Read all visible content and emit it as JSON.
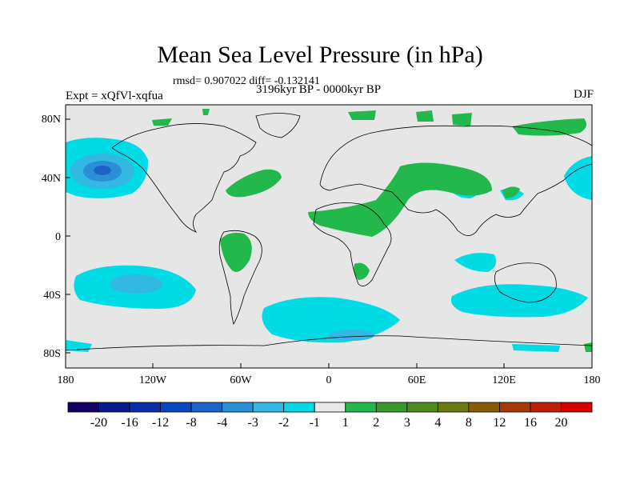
{
  "title": "Mean Sea Level Pressure (in hPa)",
  "stats": "rmsd= 0.907022 diff= -0.132141",
  "period": "3196kyr BP - 0000kyr BP",
  "experiment": "Expt = xQfVl-xqfua",
  "season": "DJF",
  "lat_ticks": [
    "80N",
    "40N",
    "0",
    "40S",
    "80S"
  ],
  "lat_values": [
    80,
    40,
    0,
    -40,
    -80
  ],
  "lon_ticks": [
    "180",
    "120W",
    "60W",
    "0",
    "60E",
    "120E",
    "180"
  ],
  "lon_values": [
    -180,
    -120,
    -60,
    0,
    60,
    120,
    180
  ],
  "colorbar": {
    "labels": [
      "-20",
      "-16",
      "-12",
      "-8",
      "-4",
      "-3",
      "-2",
      "-1",
      "1",
      "2",
      "3",
      "4",
      "8",
      "12",
      "16",
      "20"
    ],
    "colors": [
      "#150066",
      "#0a1a8c",
      "#0a2ea8",
      "#0a47bf",
      "#1a64c8",
      "#2a8fd6",
      "#33b7e3",
      "#00d9e6",
      "#e8e8e8",
      "#22b84c",
      "#3a9a2e",
      "#4f8a1c",
      "#6a7a10",
      "#8a5a0a",
      "#a83a0a",
      "#c01c0a",
      "#d60000"
    ]
  },
  "colors": {
    "background": "#e6e6e6",
    "light_blue": "#00dbe6",
    "mid_blue": "#33b7e3",
    "blue": "#2a8fd6",
    "deep_blue": "#1a64c8",
    "green": "#22b84c",
    "coast": "#000000"
  }
}
